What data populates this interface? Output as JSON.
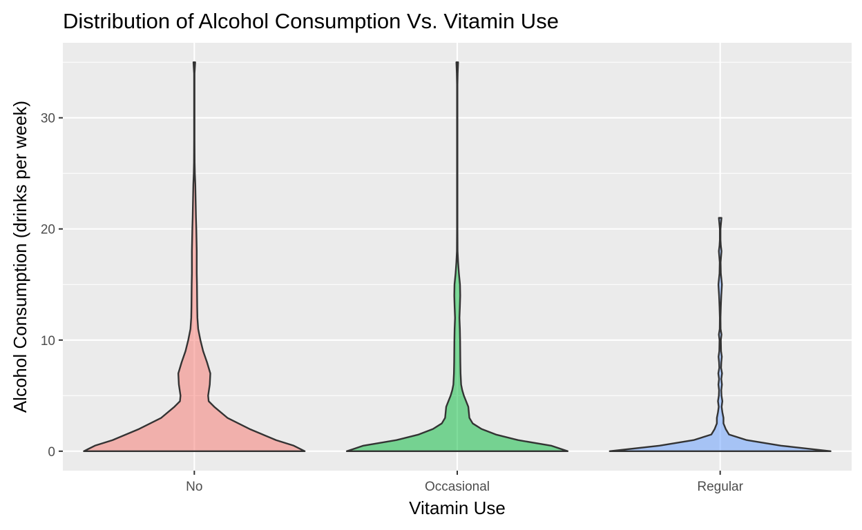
{
  "chart_data": {
    "type": "violin",
    "title": "Distribution of Alcohol Consumption Vs. Vitamin Use",
    "xlabel": "Vitamin Use",
    "ylabel": "Alcohol Consumption (drinks per week)",
    "categories": [
      "No",
      "Occasional",
      "Regular"
    ],
    "ylim": [
      -1.75,
      36.75
    ],
    "yticks": [
      0,
      10,
      20,
      30
    ],
    "grid": true,
    "legend": "none",
    "violins": [
      {
        "category": "No",
        "color": "#F8766D",
        "density": [
          [
            0,
            1.0
          ],
          [
            0.5,
            0.9
          ],
          [
            1,
            0.74
          ],
          [
            2,
            0.5
          ],
          [
            3,
            0.3
          ],
          [
            4,
            0.18
          ],
          [
            4.5,
            0.13
          ],
          [
            5,
            0.125
          ],
          [
            6,
            0.14
          ],
          [
            7,
            0.145
          ],
          [
            8,
            0.115
          ],
          [
            9,
            0.08
          ],
          [
            10,
            0.055
          ],
          [
            11,
            0.035
          ],
          [
            12,
            0.028
          ],
          [
            13,
            0.026
          ],
          [
            14,
            0.025
          ],
          [
            15,
            0.024
          ],
          [
            16,
            0.022
          ],
          [
            17,
            0.022
          ],
          [
            18,
            0.022
          ],
          [
            19,
            0.02
          ],
          [
            20,
            0.018
          ],
          [
            21,
            0.015
          ],
          [
            22,
            0.013
          ],
          [
            23,
            0.011
          ],
          [
            24,
            0.009
          ],
          [
            25,
            0.005
          ],
          [
            26,
            0.003
          ],
          [
            28,
            0.002
          ],
          [
            30,
            0.002
          ],
          [
            32,
            0.002
          ],
          [
            34,
            0.002
          ],
          [
            35,
            0.008
          ]
        ]
      },
      {
        "category": "Occasional",
        "color": "#00BA38",
        "density": [
          [
            0,
            1.0
          ],
          [
            0.5,
            0.85
          ],
          [
            1,
            0.55
          ],
          [
            1.5,
            0.35
          ],
          [
            2,
            0.22
          ],
          [
            2.5,
            0.14
          ],
          [
            3,
            0.11
          ],
          [
            3.5,
            0.105
          ],
          [
            4,
            0.1
          ],
          [
            4.5,
            0.08
          ],
          [
            5,
            0.06
          ],
          [
            5.5,
            0.045
          ],
          [
            6,
            0.035
          ],
          [
            7,
            0.03
          ],
          [
            8,
            0.028
          ],
          [
            9,
            0.027
          ],
          [
            10,
            0.026
          ],
          [
            11,
            0.024
          ],
          [
            12,
            0.02
          ],
          [
            13,
            0.024
          ],
          [
            14,
            0.027
          ],
          [
            15,
            0.025
          ],
          [
            16,
            0.015
          ],
          [
            17,
            0.008
          ],
          [
            18,
            0.003
          ],
          [
            20,
            0.002
          ],
          [
            25,
            0.002
          ],
          [
            30,
            0.002
          ],
          [
            33,
            0.002
          ],
          [
            34,
            0.004
          ],
          [
            35,
            0.008
          ]
        ]
      },
      {
        "category": "Regular",
        "color": "#619CFF",
        "density": [
          [
            0,
            1.0
          ],
          [
            0.5,
            0.55
          ],
          [
            1,
            0.24
          ],
          [
            1.5,
            0.08
          ],
          [
            2,
            0.05
          ],
          [
            2.5,
            0.03
          ],
          [
            3,
            0.03
          ],
          [
            3.5,
            0.02
          ],
          [
            4,
            0.013
          ],
          [
            4.5,
            0.02
          ],
          [
            5,
            0.012
          ],
          [
            5.5,
            0.01
          ],
          [
            6,
            0.016
          ],
          [
            6.5,
            0.01
          ],
          [
            7,
            0.017
          ],
          [
            7.5,
            0.008
          ],
          [
            8,
            0.01
          ],
          [
            8.5,
            0.015
          ],
          [
            9,
            0.008
          ],
          [
            10,
            0.006
          ],
          [
            10.5,
            0.012
          ],
          [
            11,
            0.004
          ],
          [
            12,
            0.003
          ],
          [
            13,
            0.006
          ],
          [
            14,
            0.01
          ],
          [
            15,
            0.016
          ],
          [
            16,
            0.006
          ],
          [
            17,
            0.004
          ],
          [
            18,
            0.012
          ],
          [
            18.5,
            0.006
          ],
          [
            19,
            0.003
          ],
          [
            20,
            0.003
          ],
          [
            21,
            0.012
          ]
        ]
      }
    ]
  }
}
